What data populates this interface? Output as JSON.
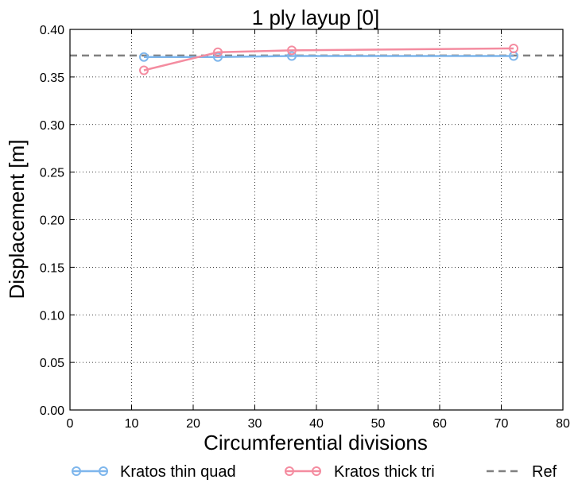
{
  "chart_data": {
    "type": "line",
    "title": "1 ply layup [0]",
    "xlabel": "Circumferential divisions",
    "ylabel": "Displacement [m]",
    "xlim": [
      0,
      80
    ],
    "ylim": [
      0,
      0.4
    ],
    "xticks": [
      0,
      10,
      20,
      30,
      40,
      50,
      60,
      70,
      80
    ],
    "yticks": [
      0.0,
      0.05,
      0.1,
      0.15,
      0.2,
      0.25,
      0.3,
      0.35,
      0.4
    ],
    "xtick_labels": [
      "0",
      "10",
      "20",
      "30",
      "40",
      "50",
      "60",
      "70",
      "80"
    ],
    "ytick_labels": [
      "0.00",
      "0.05",
      "0.10",
      "0.15",
      "0.20",
      "0.25",
      "0.30",
      "0.35",
      "0.40"
    ],
    "grid": true,
    "legend_placement": "bottom",
    "series": [
      {
        "name": "Kratos thin quad",
        "color": "#7eb6ec",
        "style": "line-circle-markers",
        "x": [
          12,
          24,
          36,
          72
        ],
        "y": [
          0.371,
          0.371,
          0.372,
          0.372
        ]
      },
      {
        "name": "Kratos thick tri",
        "color": "#f48ca0",
        "style": "line-circle-markers",
        "x": [
          12,
          24,
          36,
          72
        ],
        "y": [
          0.357,
          0.376,
          0.378,
          0.38
        ]
      },
      {
        "name": "Ref",
        "color": "#808080",
        "style": "dashed",
        "y_constant": 0.3725
      }
    ]
  }
}
